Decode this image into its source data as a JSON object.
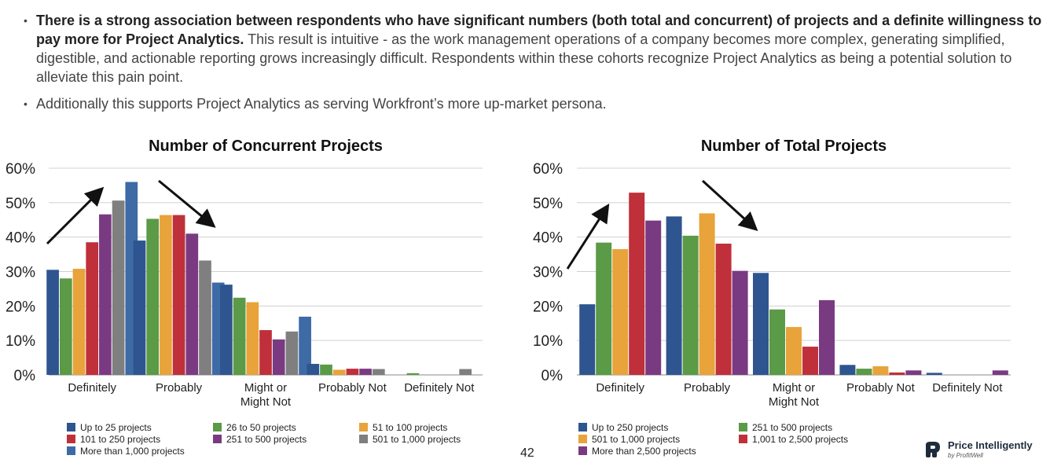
{
  "bullets": [
    {
      "bold": "There is a strong association between respondents who have significant numbers (both total and concurrent) of projects and a definite willingness to pay more for Project Analytics.",
      "rest": " This result is intuitive - as the work management operations of a company becomes more complex, generating simplified, digestible, and actionable reporting grows increasingly difficult. Respondents within these cohorts recognize Project Analytics as being a potential solution to alleviate this pain point."
    },
    {
      "bold": "",
      "rest": "Additionally this supports Project Analytics as serving Workfront’s more up-market persona."
    }
  ],
  "page_number": "42",
  "logo": {
    "name": "Price Intelligently",
    "sub": "by ProfitWell"
  },
  "chart_data": [
    {
      "type": "bar",
      "title": "Number of Concurrent Projects",
      "categories": [
        "Definitely",
        "Probably",
        "Might or Might Not",
        "Probably Not",
        "Definitely Not"
      ],
      "yticks": [
        "0%",
        "10%",
        "20%",
        "30%",
        "40%",
        "50%",
        "60%"
      ],
      "ylim": [
        0,
        60
      ],
      "series": [
        {
          "name": "Up to 25 projects",
          "color": "#2e5590",
          "values": [
            30.5,
            39,
            26.2,
            3.2,
            0
          ]
        },
        {
          "name": "26 to 50 projects",
          "color": "#5b9a46",
          "values": [
            28,
            45.3,
            22.4,
            3,
            0.5
          ]
        },
        {
          "name": "51 to 100 projects",
          "color": "#e8a33a",
          "values": [
            30.8,
            46.4,
            21.1,
            1.5,
            0
          ]
        },
        {
          "name": "101 to 250 projects",
          "color": "#c0303a",
          "values": [
            38.5,
            46.4,
            13,
            1.8,
            0
          ]
        },
        {
          "name": "251 to 500 projects",
          "color": "#7a3a82",
          "values": [
            46.6,
            41,
            10.3,
            1.8,
            0
          ]
        },
        {
          "name": "501 to 1,000 projects",
          "color": "#7f7f7f",
          "values": [
            50.6,
            33.2,
            12.6,
            1.7,
            1.7
          ]
        },
        {
          "name": "More than 1,000 projects",
          "color": "#3e6aa6",
          "values": [
            56,
            26.8,
            16.9,
            0,
            0
          ]
        }
      ],
      "legend_columns": 3
    },
    {
      "type": "bar",
      "title": "Number of Total Projects",
      "categories": [
        "Definitely",
        "Probably",
        "Might or Might Not",
        "Probably Not",
        "Definitely Not"
      ],
      "yticks": [
        "0%",
        "10%",
        "20%",
        "30%",
        "40%",
        "50%",
        "60%"
      ],
      "ylim": [
        0,
        60
      ],
      "series": [
        {
          "name": "Up to 250 projects",
          "color": "#2e5590",
          "values": [
            20.5,
            46,
            29.6,
            2.9,
            0.6
          ]
        },
        {
          "name": "251 to 500 projects",
          "color": "#5b9a46",
          "values": [
            38.4,
            40.4,
            19,
            1.8,
            0
          ]
        },
        {
          "name": "501 to 1,000 projects",
          "color": "#e8a33a",
          "values": [
            36.5,
            46.9,
            13.9,
            2.5,
            0
          ]
        },
        {
          "name": "1,001 to 2,500 projects",
          "color": "#c0303a",
          "values": [
            52.9,
            38.1,
            8.2,
            0.7,
            0
          ]
        },
        {
          "name": "More than 2,500 projects",
          "color": "#7a3a82",
          "values": [
            44.8,
            30.2,
            21.7,
            1.3,
            1.3
          ]
        }
      ],
      "legend_columns": 2
    }
  ]
}
